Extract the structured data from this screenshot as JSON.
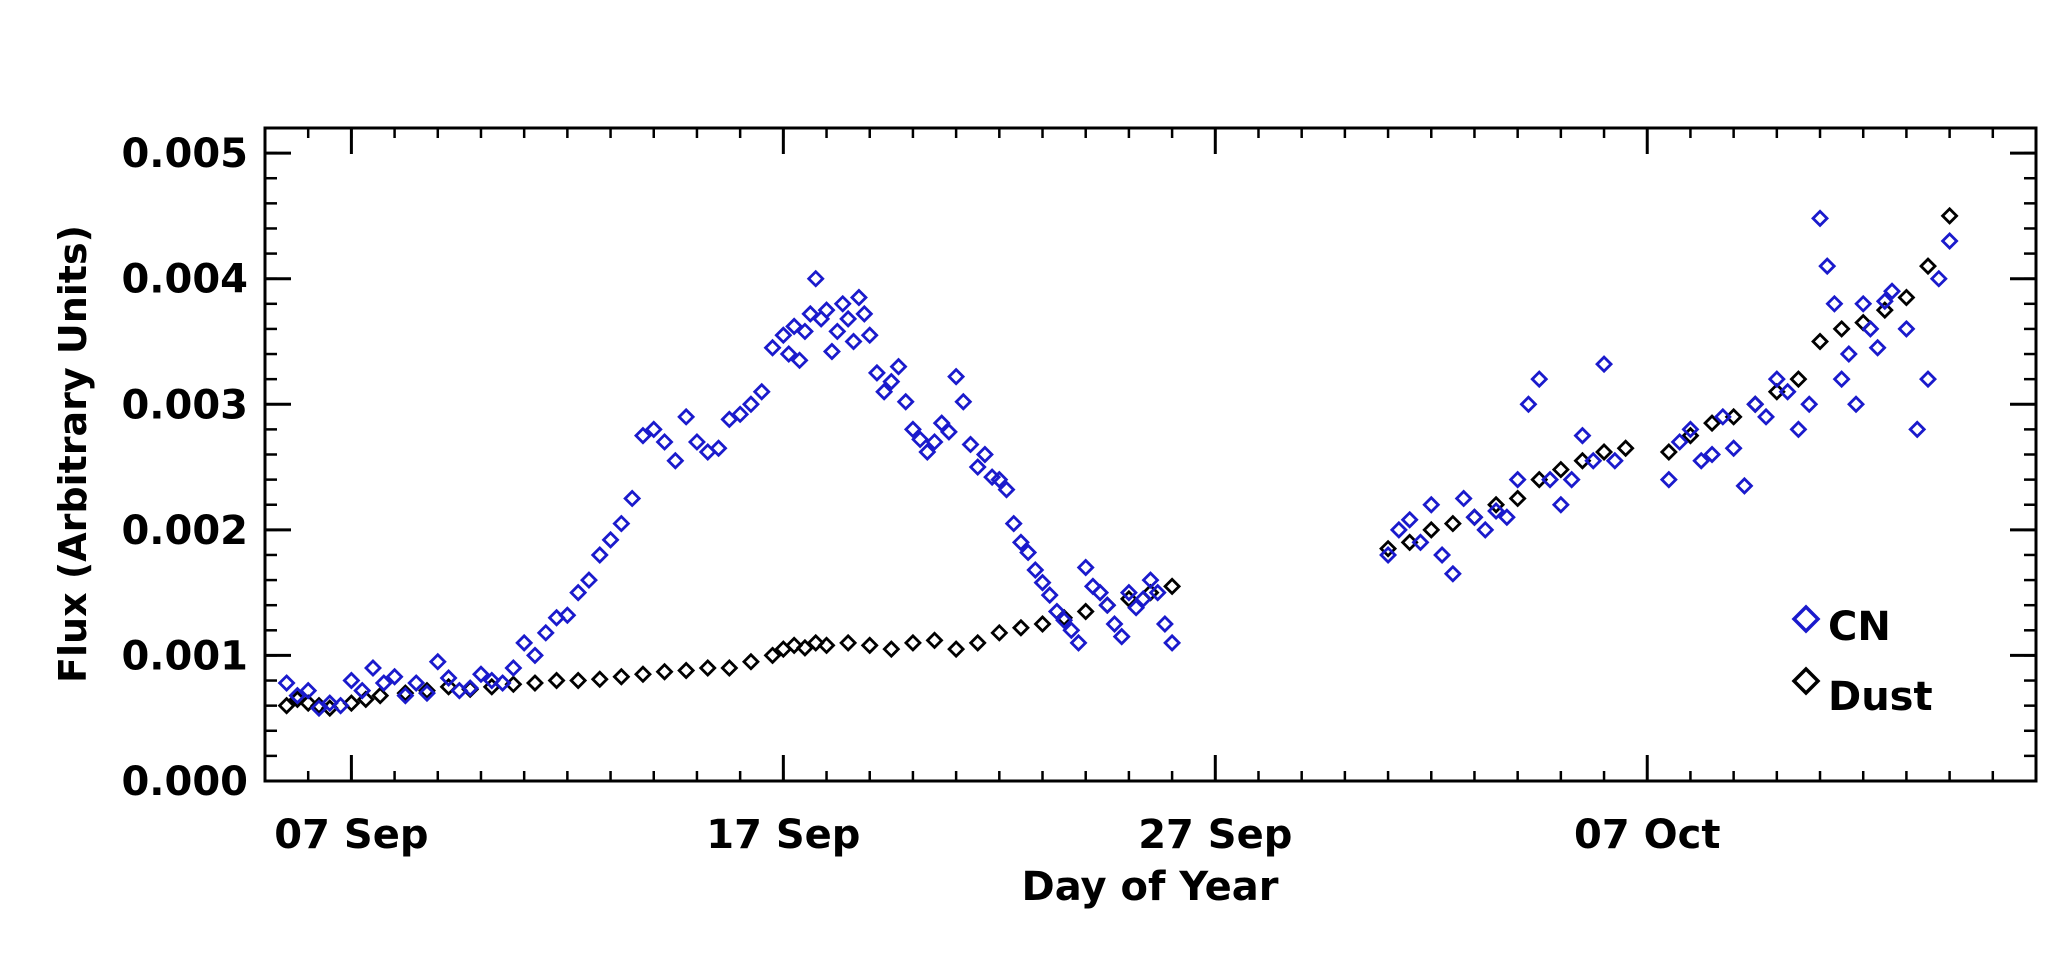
{
  "chart_data": {
    "type": "scatter",
    "title": "",
    "xlabel": "Day of Year",
    "ylabel": "Flux (Arbitrary Units)",
    "x_unit": "date (2014)",
    "xlim": [
      "2014-09-05",
      "2014-10-16"
    ],
    "ylim": [
      0.0,
      0.0052
    ],
    "grid": false,
    "legend_position": "bottom-right",
    "x_ticks": [
      {
        "date": "2014-09-07",
        "label": "07 Sep"
      },
      {
        "date": "2014-09-17",
        "label": "17 Sep"
      },
      {
        "date": "2014-09-27",
        "label": "27 Sep"
      },
      {
        "date": "2014-10-07",
        "label": "07 Oct"
      }
    ],
    "y_ticks": [
      {
        "value": 0.0,
        "label": "0.000"
      },
      {
        "value": 0.001,
        "label": "0.001"
      },
      {
        "value": 0.002,
        "label": "0.002"
      },
      {
        "value": 0.003,
        "label": "0.003"
      },
      {
        "value": 0.004,
        "label": "0.004"
      },
      {
        "value": 0.005,
        "label": "0.005"
      }
    ],
    "series": [
      {
        "name": "CN",
        "color": "#1a1acc",
        "marker": "diamond",
        "points": [
          [
            "2014-09-05 12:00",
            0.00078
          ],
          [
            "2014-09-05 18:00",
            0.00068
          ],
          [
            "2014-09-06 00:00",
            0.00072
          ],
          [
            "2014-09-06 06:00",
            0.00058
          ],
          [
            "2014-09-06 12:00",
            0.00062
          ],
          [
            "2014-09-06 18:00",
            0.0006
          ],
          [
            "2014-09-07 00:00",
            0.0008
          ],
          [
            "2014-09-07 06:00",
            0.00072
          ],
          [
            "2014-09-07 12:00",
            0.0009
          ],
          [
            "2014-09-07 18:00",
            0.00078
          ],
          [
            "2014-09-08 00:00",
            0.00083
          ],
          [
            "2014-09-08 06:00",
            0.00068
          ],
          [
            "2014-09-08 12:00",
            0.00078
          ],
          [
            "2014-09-08 18:00",
            0.0007
          ],
          [
            "2014-09-09 00:00",
            0.00095
          ],
          [
            "2014-09-09 06:00",
            0.00082
          ],
          [
            "2014-09-09 12:00",
            0.00072
          ],
          [
            "2014-09-09 18:00",
            0.00074
          ],
          [
            "2014-09-10 00:00",
            0.00085
          ],
          [
            "2014-09-10 06:00",
            0.0008
          ],
          [
            "2014-09-10 12:00",
            0.00078
          ],
          [
            "2014-09-10 18:00",
            0.0009
          ],
          [
            "2014-09-11 00:00",
            0.0011
          ],
          [
            "2014-09-11 06:00",
            0.001
          ],
          [
            "2014-09-11 12:00",
            0.00118
          ],
          [
            "2014-09-11 18:00",
            0.0013
          ],
          [
            "2014-09-12 00:00",
            0.00132
          ],
          [
            "2014-09-12 06:00",
            0.0015
          ],
          [
            "2014-09-12 12:00",
            0.0016
          ],
          [
            "2014-09-12 18:00",
            0.0018
          ],
          [
            "2014-09-13 00:00",
            0.00192
          ],
          [
            "2014-09-13 06:00",
            0.00205
          ],
          [
            "2014-09-13 12:00",
            0.00225
          ],
          [
            "2014-09-13 18:00",
            0.00275
          ],
          [
            "2014-09-14 00:00",
            0.0028
          ],
          [
            "2014-09-14 06:00",
            0.0027
          ],
          [
            "2014-09-14 12:00",
            0.00255
          ],
          [
            "2014-09-14 18:00",
            0.0029
          ],
          [
            "2014-09-15 00:00",
            0.0027
          ],
          [
            "2014-09-15 06:00",
            0.00262
          ],
          [
            "2014-09-15 12:00",
            0.00265
          ],
          [
            "2014-09-15 18:00",
            0.00288
          ],
          [
            "2014-09-16 00:00",
            0.00292
          ],
          [
            "2014-09-16 06:00",
            0.003
          ],
          [
            "2014-09-16 12:00",
            0.0031
          ],
          [
            "2014-09-16 18:00",
            0.00345
          ],
          [
            "2014-09-17 00:00",
            0.00355
          ],
          [
            "2014-09-17 03:00",
            0.0034
          ],
          [
            "2014-09-17 06:00",
            0.00362
          ],
          [
            "2014-09-17 09:00",
            0.00335
          ],
          [
            "2014-09-17 12:00",
            0.00358
          ],
          [
            "2014-09-17 15:00",
            0.00372
          ],
          [
            "2014-09-17 18:00",
            0.004
          ],
          [
            "2014-09-17 21:00",
            0.00368
          ],
          [
            "2014-09-18 00:00",
            0.00375
          ],
          [
            "2014-09-18 03:00",
            0.00342
          ],
          [
            "2014-09-18 06:00",
            0.00358
          ],
          [
            "2014-09-18 09:00",
            0.0038
          ],
          [
            "2014-09-18 12:00",
            0.00368
          ],
          [
            "2014-09-18 15:00",
            0.0035
          ],
          [
            "2014-09-18 18:00",
            0.00385
          ],
          [
            "2014-09-18 21:00",
            0.00372
          ],
          [
            "2014-09-19 00:00",
            0.00355
          ],
          [
            "2014-09-19 04:00",
            0.00325
          ],
          [
            "2014-09-19 08:00",
            0.0031
          ],
          [
            "2014-09-19 12:00",
            0.00318
          ],
          [
            "2014-09-19 16:00",
            0.0033
          ],
          [
            "2014-09-19 20:00",
            0.00302
          ],
          [
            "2014-09-20 00:00",
            0.0028
          ],
          [
            "2014-09-20 04:00",
            0.00272
          ],
          [
            "2014-09-20 08:00",
            0.00262
          ],
          [
            "2014-09-20 12:00",
            0.0027
          ],
          [
            "2014-09-20 16:00",
            0.00285
          ],
          [
            "2014-09-20 20:00",
            0.00278
          ],
          [
            "2014-09-21 00:00",
            0.00322
          ],
          [
            "2014-09-21 04:00",
            0.00302
          ],
          [
            "2014-09-21 08:00",
            0.00268
          ],
          [
            "2014-09-21 12:00",
            0.0025
          ],
          [
            "2014-09-21 16:00",
            0.0026
          ],
          [
            "2014-09-21 20:00",
            0.00242
          ],
          [
            "2014-09-22 00:00",
            0.0024
          ],
          [
            "2014-09-22 04:00",
            0.00232
          ],
          [
            "2014-09-22 08:00",
            0.00205
          ],
          [
            "2014-09-22 12:00",
            0.0019
          ],
          [
            "2014-09-22 16:00",
            0.00182
          ],
          [
            "2014-09-22 20:00",
            0.00168
          ],
          [
            "2014-09-23 00:00",
            0.00158
          ],
          [
            "2014-09-23 04:00",
            0.00148
          ],
          [
            "2014-09-23 08:00",
            0.00135
          ],
          [
            "2014-09-23 12:00",
            0.00128
          ],
          [
            "2014-09-23 16:00",
            0.0012
          ],
          [
            "2014-09-23 20:00",
            0.0011
          ],
          [
            "2014-09-24 00:00",
            0.0017
          ],
          [
            "2014-09-24 04:00",
            0.00155
          ],
          [
            "2014-09-24 08:00",
            0.0015
          ],
          [
            "2014-09-24 12:00",
            0.0014
          ],
          [
            "2014-09-24 16:00",
            0.00125
          ],
          [
            "2014-09-24 20:00",
            0.00115
          ],
          [
            "2014-09-25 00:00",
            0.0015
          ],
          [
            "2014-09-25 04:00",
            0.00138
          ],
          [
            "2014-09-25 08:00",
            0.00145
          ],
          [
            "2014-09-25 12:00",
            0.0016
          ],
          [
            "2014-09-25 16:00",
            0.0015
          ],
          [
            "2014-09-25 20:00",
            0.00125
          ],
          [
            "2014-09-26 00:00",
            0.0011
          ],
          [
            "2014-10-01 00:00",
            0.0018
          ],
          [
            "2014-10-01 06:00",
            0.002
          ],
          [
            "2014-10-01 12:00",
            0.00208
          ],
          [
            "2014-10-01 18:00",
            0.0019
          ],
          [
            "2014-10-02 00:00",
            0.0022
          ],
          [
            "2014-10-02 06:00",
            0.0018
          ],
          [
            "2014-10-02 12:00",
            0.00165
          ],
          [
            "2014-10-02 18:00",
            0.00225
          ],
          [
            "2014-10-03 00:00",
            0.0021
          ],
          [
            "2014-10-03 06:00",
            0.002
          ],
          [
            "2014-10-03 12:00",
            0.00215
          ],
          [
            "2014-10-03 18:00",
            0.0021
          ],
          [
            "2014-10-04 00:00",
            0.0024
          ],
          [
            "2014-10-04 06:00",
            0.003
          ],
          [
            "2014-10-04 12:00",
            0.0032
          ],
          [
            "2014-10-04 18:00",
            0.0024
          ],
          [
            "2014-10-05 00:00",
            0.0022
          ],
          [
            "2014-10-05 06:00",
            0.0024
          ],
          [
            "2014-10-05 12:00",
            0.00275
          ],
          [
            "2014-10-05 18:00",
            0.00255
          ],
          [
            "2014-10-06 00:00",
            0.00332
          ],
          [
            "2014-10-06 06:00",
            0.00255
          ],
          [
            "2014-10-07 12:00",
            0.0024
          ],
          [
            "2014-10-07 18:00",
            0.0027
          ],
          [
            "2014-10-08 00:00",
            0.0028
          ],
          [
            "2014-10-08 06:00",
            0.00255
          ],
          [
            "2014-10-08 12:00",
            0.0026
          ],
          [
            "2014-10-08 18:00",
            0.0029
          ],
          [
            "2014-10-09 00:00",
            0.00265
          ],
          [
            "2014-10-09 06:00",
            0.00235
          ],
          [
            "2014-10-09 12:00",
            0.003
          ],
          [
            "2014-10-09 18:00",
            0.0029
          ],
          [
            "2014-10-10 00:00",
            0.0032
          ],
          [
            "2014-10-10 06:00",
            0.0031
          ],
          [
            "2014-10-10 12:00",
            0.0028
          ],
          [
            "2014-10-10 18:00",
            0.003
          ],
          [
            "2014-10-11 00:00",
            0.00448
          ],
          [
            "2014-10-11 04:00",
            0.0041
          ],
          [
            "2014-10-11 08:00",
            0.0038
          ],
          [
            "2014-10-11 12:00",
            0.0032
          ],
          [
            "2014-10-11 16:00",
            0.0034
          ],
          [
            "2014-10-11 20:00",
            0.003
          ],
          [
            "2014-10-12 00:00",
            0.0038
          ],
          [
            "2014-10-12 04:00",
            0.0036
          ],
          [
            "2014-10-12 08:00",
            0.00345
          ],
          [
            "2014-10-12 12:00",
            0.00382
          ],
          [
            "2014-10-12 16:00",
            0.0039
          ],
          [
            "2014-10-13 00:00",
            0.0036
          ],
          [
            "2014-10-13 06:00",
            0.0028
          ],
          [
            "2014-10-13 12:00",
            0.0032
          ],
          [
            "2014-10-13 18:00",
            0.004
          ],
          [
            "2014-10-14 00:00",
            0.0043
          ]
        ]
      },
      {
        "name": "Dust",
        "color": "#000000",
        "marker": "diamond",
        "points": [
          [
            "2014-09-05 12:00",
            0.0006
          ],
          [
            "2014-09-05 18:00",
            0.00065
          ],
          [
            "2014-09-06 00:00",
            0.00062
          ],
          [
            "2014-09-06 06:00",
            0.0006
          ],
          [
            "2014-09-06 12:00",
            0.00058
          ],
          [
            "2014-09-07 00:00",
            0.00062
          ],
          [
            "2014-09-07 08:00",
            0.00065
          ],
          [
            "2014-09-07 16:00",
            0.00068
          ],
          [
            "2014-09-08 06:00",
            0.0007
          ],
          [
            "2014-09-08 18:00",
            0.00072
          ],
          [
            "2014-09-09 06:00",
            0.00075
          ],
          [
            "2014-09-09 18:00",
            0.00073
          ],
          [
            "2014-09-10 06:00",
            0.00075
          ],
          [
            "2014-09-10 18:00",
            0.00077
          ],
          [
            "2014-09-11 06:00",
            0.00078
          ],
          [
            "2014-09-11 18:00",
            0.0008
          ],
          [
            "2014-09-12 06:00",
            0.0008
          ],
          [
            "2014-09-12 18:00",
            0.00081
          ],
          [
            "2014-09-13 06:00",
            0.00083
          ],
          [
            "2014-09-13 18:00",
            0.00085
          ],
          [
            "2014-09-14 06:00",
            0.00087
          ],
          [
            "2014-09-14 18:00",
            0.00088
          ],
          [
            "2014-09-15 06:00",
            0.0009
          ],
          [
            "2014-09-15 18:00",
            0.0009
          ],
          [
            "2014-09-16 06:00",
            0.00095
          ],
          [
            "2014-09-16 18:00",
            0.001
          ],
          [
            "2014-09-17 00:00",
            0.00105
          ],
          [
            "2014-09-17 06:00",
            0.00108
          ],
          [
            "2014-09-17 12:00",
            0.00106
          ],
          [
            "2014-09-17 18:00",
            0.0011
          ],
          [
            "2014-09-18 00:00",
            0.00108
          ],
          [
            "2014-09-18 12:00",
            0.0011
          ],
          [
            "2014-09-19 00:00",
            0.00108
          ],
          [
            "2014-09-19 12:00",
            0.00105
          ],
          [
            "2014-09-20 00:00",
            0.0011
          ],
          [
            "2014-09-20 12:00",
            0.00112
          ],
          [
            "2014-09-21 00:00",
            0.00105
          ],
          [
            "2014-09-21 12:00",
            0.0011
          ],
          [
            "2014-09-22 00:00",
            0.00118
          ],
          [
            "2014-09-22 12:00",
            0.00122
          ],
          [
            "2014-09-23 00:00",
            0.00125
          ],
          [
            "2014-09-23 12:00",
            0.0013
          ],
          [
            "2014-09-24 00:00",
            0.00135
          ],
          [
            "2014-09-24 12:00",
            0.0014
          ],
          [
            "2014-09-25 00:00",
            0.00145
          ],
          [
            "2014-09-25 12:00",
            0.0015
          ],
          [
            "2014-09-26 00:00",
            0.00155
          ],
          [
            "2014-10-01 00:00",
            0.00185
          ],
          [
            "2014-10-01 12:00",
            0.0019
          ],
          [
            "2014-10-02 00:00",
            0.002
          ],
          [
            "2014-10-02 12:00",
            0.00205
          ],
          [
            "2014-10-03 00:00",
            0.0021
          ],
          [
            "2014-10-03 12:00",
            0.0022
          ],
          [
            "2014-10-04 00:00",
            0.00225
          ],
          [
            "2014-10-04 12:00",
            0.0024
          ],
          [
            "2014-10-05 00:00",
            0.00248
          ],
          [
            "2014-10-05 12:00",
            0.00255
          ],
          [
            "2014-10-06 00:00",
            0.00262
          ],
          [
            "2014-10-06 12:00",
            0.00265
          ],
          [
            "2014-10-07 12:00",
            0.00262
          ],
          [
            "2014-10-08 00:00",
            0.00275
          ],
          [
            "2014-10-08 12:00",
            0.00285
          ],
          [
            "2014-10-09 00:00",
            0.0029
          ],
          [
            "2014-10-09 12:00",
            0.003
          ],
          [
            "2014-10-10 00:00",
            0.0031
          ],
          [
            "2014-10-10 12:00",
            0.0032
          ],
          [
            "2014-10-11 00:00",
            0.0035
          ],
          [
            "2014-10-11 12:00",
            0.0036
          ],
          [
            "2014-10-12 00:00",
            0.00365
          ],
          [
            "2014-10-12 12:00",
            0.00375
          ],
          [
            "2014-10-13 00:00",
            0.00385
          ],
          [
            "2014-10-13 12:00",
            0.0041
          ],
          [
            "2014-10-14 00:00",
            0.0045
          ]
        ]
      }
    ]
  }
}
